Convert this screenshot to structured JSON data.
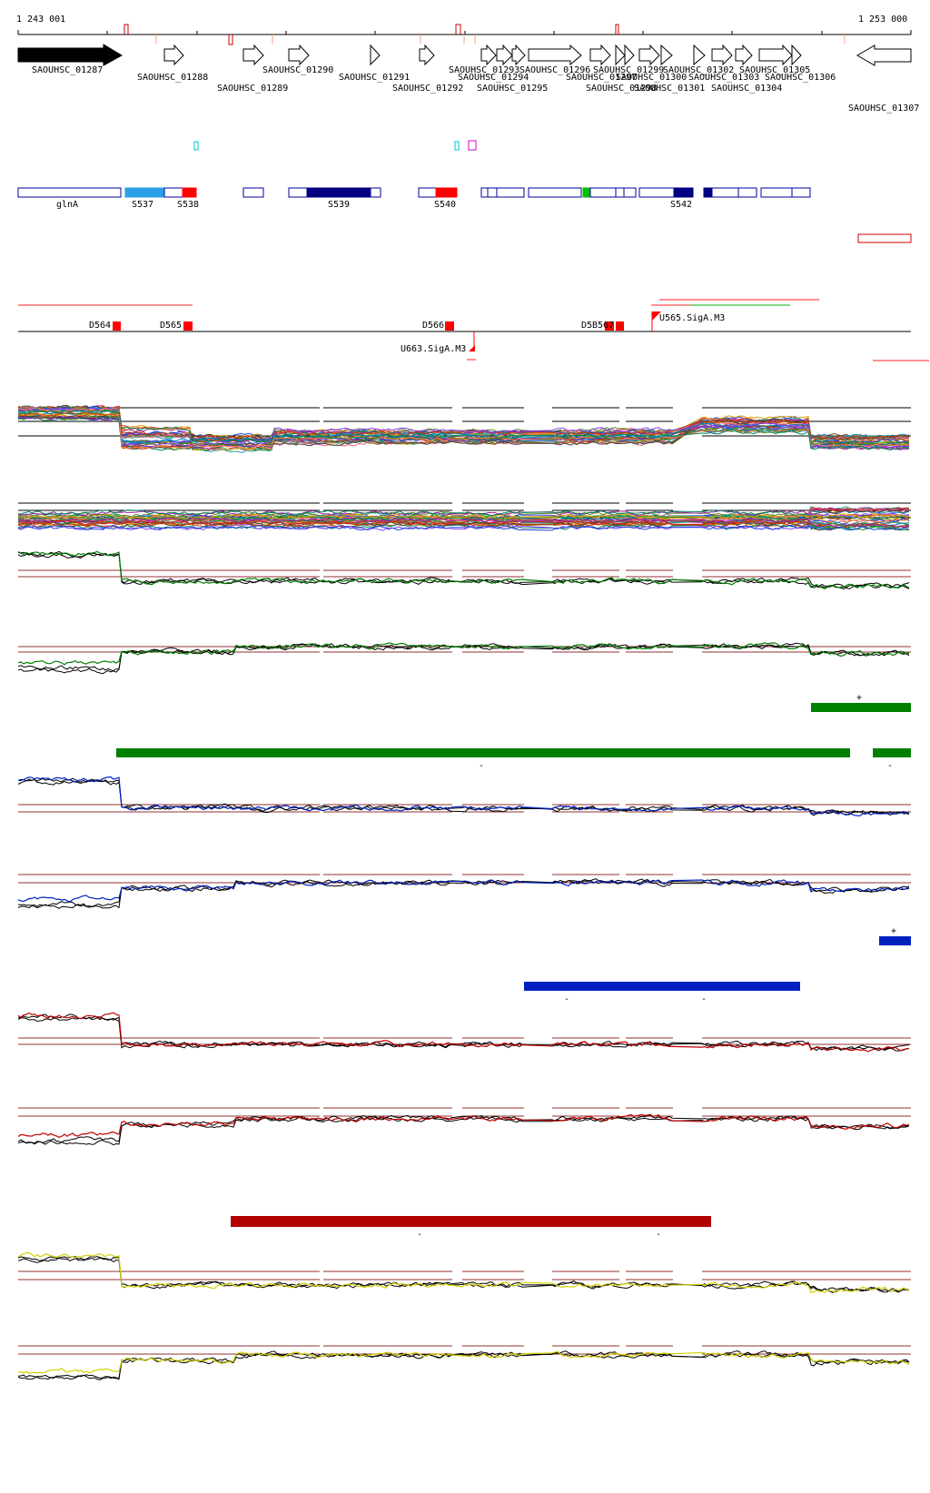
{
  "coords": {
    "start": "1 243 001",
    "end": "1 253 000"
  },
  "genes": [
    {
      "label": "SAOUHSC_01287",
      "strand": "+",
      "highlight": true
    },
    {
      "label": "SAOUHSC_01288",
      "strand": "+"
    },
    {
      "label": "SAOUHSC_01289",
      "strand": "+"
    },
    {
      "label": "SAOUHSC_01290",
      "strand": "+"
    },
    {
      "label": "SAOUHSC_01291",
      "strand": "+"
    },
    {
      "label": "SAOUHSC_01292",
      "strand": "+"
    },
    {
      "label": "SAOUHSC_01293",
      "strand": "+"
    },
    {
      "label": "SAOUHSC_01294",
      "strand": "+"
    },
    {
      "label": "SAOUHSC_01295",
      "strand": "+"
    },
    {
      "label": "SAOUHSC_01296",
      "strand": "+"
    },
    {
      "label": "SAOUHSC_01297",
      "strand": "+"
    },
    {
      "label": "SAOUHSC_01298",
      "strand": "+"
    },
    {
      "label": "SAOUHSC_01299",
      "strand": "+"
    },
    {
      "label": "SAOUHSC_01300",
      "strand": "+"
    },
    {
      "label": "SAOUHSC_01301",
      "strand": "+"
    },
    {
      "label": "SAOUHSC_01302",
      "strand": "+"
    },
    {
      "label": "SAOUHSC_01303",
      "strand": "+"
    },
    {
      "label": "SAOUHSC_01304",
      "strand": "+"
    },
    {
      "label": "SAOUHSC_01305",
      "strand": "+"
    },
    {
      "label": "SAOUHSC_01306",
      "strand": "+"
    },
    {
      "label": "SAOUHSC_01307",
      "strand": "-"
    }
  ],
  "segments": [
    {
      "label": "glnA"
    },
    {
      "label": "S537",
      "color": "#2aa0e8"
    },
    {
      "label": "S538",
      "color": "#ff0000"
    },
    {
      "label": "S539",
      "color": "#000080"
    },
    {
      "label": "S540",
      "color": "#ff0000"
    },
    {
      "label": "S542",
      "color": "#000080"
    }
  ],
  "features": [
    {
      "label": "D564"
    },
    {
      "label": "D565"
    },
    {
      "label": "D566"
    },
    {
      "label": "D5B567"
    },
    {
      "label": "U565.SigA.M3"
    },
    {
      "label": "U663.SigA.M3"
    }
  ],
  "conditions": [
    {
      "color": "#008000",
      "signs": [
        "+",
        "-",
        "-"
      ]
    },
    {
      "color": "#0020c0",
      "signs": [
        "+",
        "-",
        "-"
      ]
    },
    {
      "color": "#b00000",
      "signs": [
        "-",
        "-"
      ]
    },
    {
      "color": "#d0d000",
      "signs": []
    }
  ]
}
